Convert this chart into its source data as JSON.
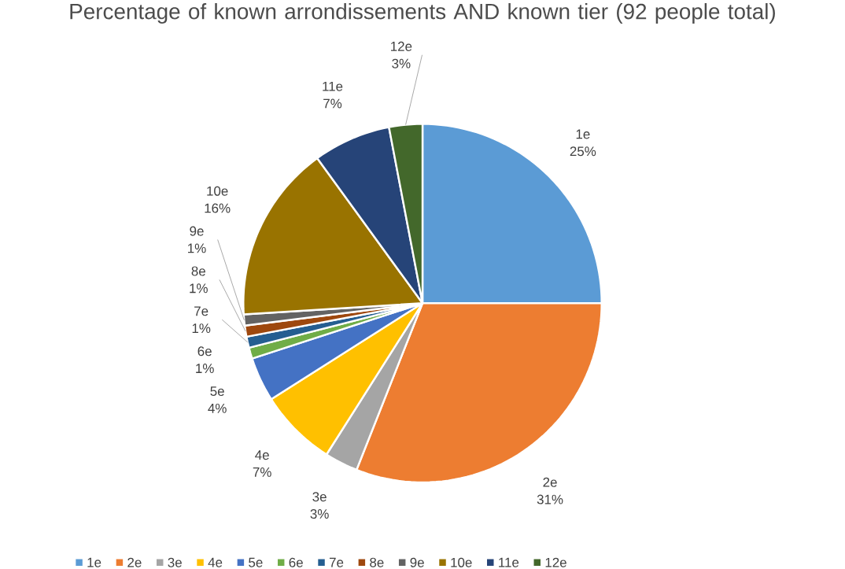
{
  "chart_data": {
    "type": "pie",
    "title": "Percentage of known arrondissements AND known tier (92 people total)",
    "categories": [
      "1e",
      "2e",
      "3e",
      "4e",
      "5e",
      "6e",
      "7e",
      "8e",
      "9e",
      "10e",
      "11e",
      "12e"
    ],
    "values": [
      25,
      31,
      3,
      7,
      4,
      1,
      1,
      1,
      1,
      16,
      7,
      3
    ],
    "value_labels": [
      "25%",
      "31%",
      "3%",
      "7%",
      "4%",
      "1%",
      "1%",
      "1%",
      "1%",
      "16%",
      "7%",
      "3%"
    ],
    "colors": [
      "#5b9bd5",
      "#ed7d31",
      "#a5a5a5",
      "#ffc000",
      "#4472c4",
      "#70ad47",
      "#255e91",
      "#9e480e",
      "#636363",
      "#997300",
      "#264478",
      "#43682b"
    ],
    "legend": "bottom"
  }
}
